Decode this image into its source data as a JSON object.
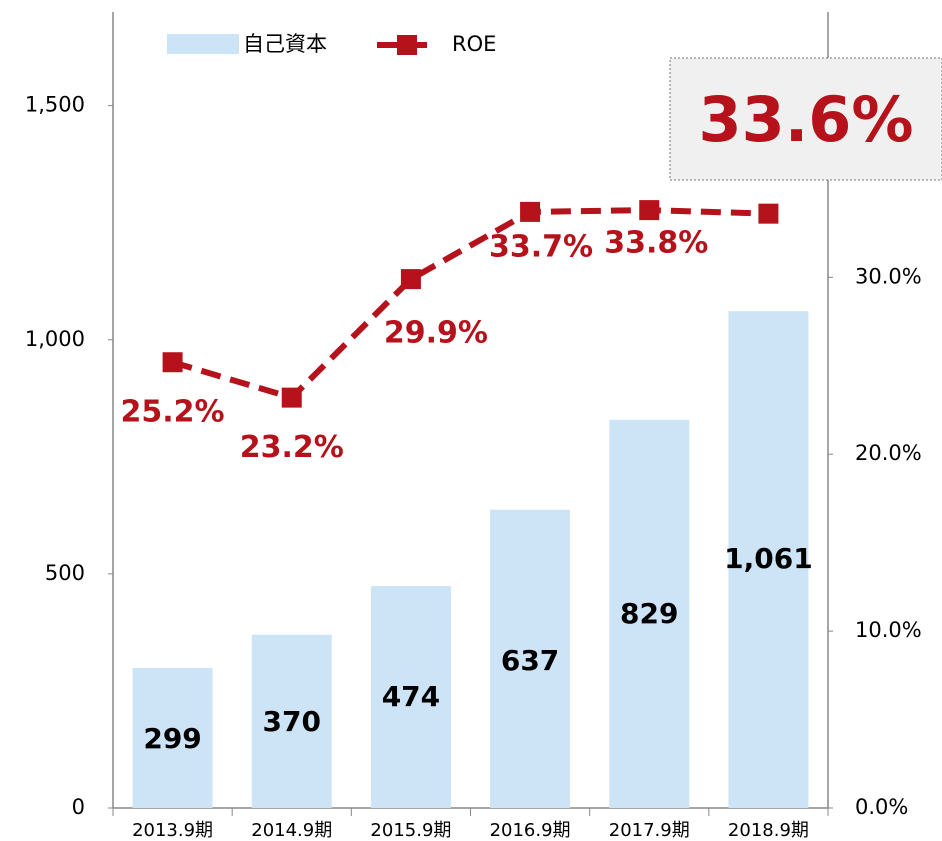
{
  "chart_data": {
    "type": "bar",
    "categories": [
      "2013.9期",
      "2014.9期",
      "2015.9期",
      "2016.9期",
      "2017.9期",
      "2018.9期"
    ],
    "series": [
      {
        "name": "自己資本",
        "type": "bar",
        "color": "#cde3f6",
        "values": [
          299,
          370,
          474,
          637,
          829,
          1061
        ],
        "value_labels": [
          "299",
          "370",
          "474",
          "637",
          "829",
          "1,061"
        ]
      },
      {
        "name": "ROE",
        "type": "line",
        "axis": "y2",
        "color": "#b5121b",
        "values": [
          25.2,
          23.2,
          29.9,
          33.7,
          33.8,
          33.6
        ],
        "value_labels": [
          "25.2%",
          "23.2%",
          "29.9%",
          "33.7%",
          "33.8%",
          "33.6%"
        ]
      }
    ],
    "ylim": [
      0,
      1700
    ],
    "yticks": [
      0,
      500,
      {
        "value": 1000,
        "label": "1,000"
      },
      {
        "value": 1500,
        "label": "1,500"
      }
    ],
    "y2lim": [
      0,
      45
    ],
    "y2ticks": [
      {
        "value": 0,
        "label": "0.0%"
      },
      {
        "value": 10,
        "label": "10.0%"
      },
      {
        "value": 20,
        "label": "20.0%"
      },
      {
        "value": 30,
        "label": "30.0%"
      }
    ],
    "legend": "top"
  }
}
